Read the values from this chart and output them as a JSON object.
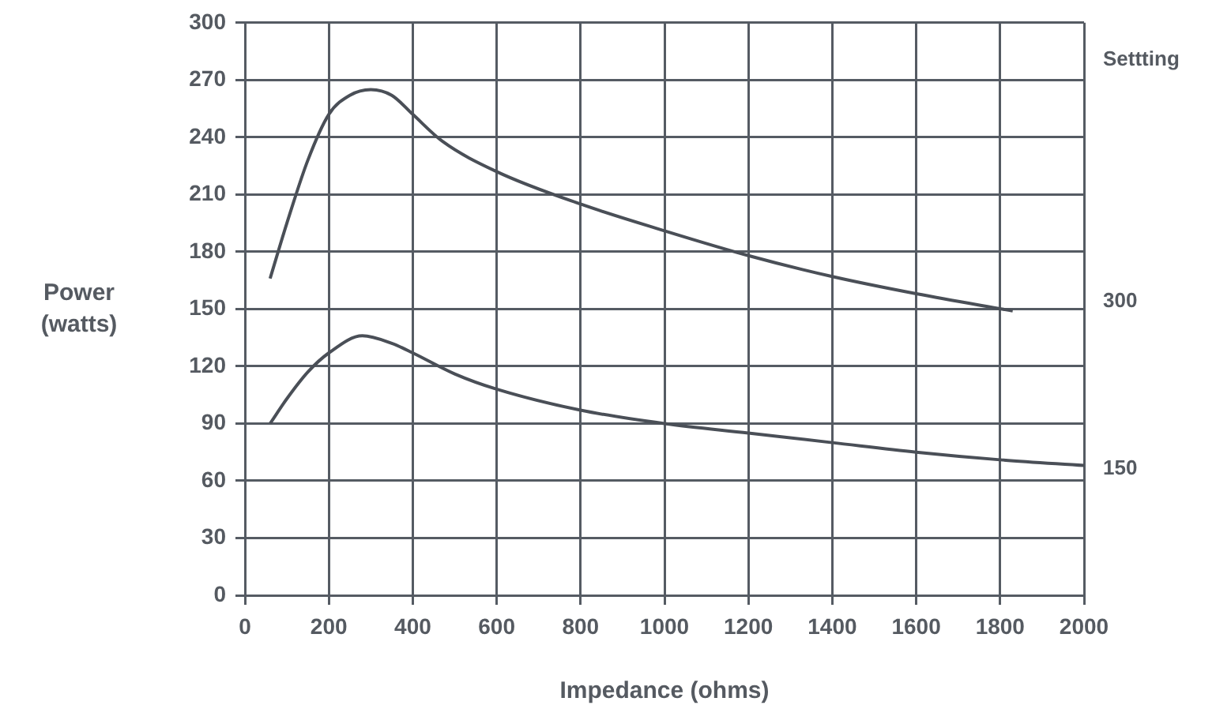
{
  "chart_data": {
    "type": "line",
    "xlabel": "Impedance (ohms)",
    "ylabel": "Power (watts)",
    "legend_title": "Settting",
    "xlim": [
      0,
      2000
    ],
    "xticks": [
      0,
      200,
      400,
      600,
      800,
      1000,
      1200,
      1400,
      1600,
      1800,
      2000
    ],
    "ylim": [
      0,
      300
    ],
    "yticks": [
      0,
      30,
      60,
      90,
      120,
      150,
      180,
      210,
      240,
      270,
      300
    ],
    "grid": true,
    "marker": "none",
    "line_style": "solid",
    "series": [
      {
        "name": "300",
        "color": "#4a4f57",
        "x": [
          60,
          100,
          150,
          200,
          250,
          300,
          350,
          400,
          470,
          600,
          800,
          1000,
          1200,
          1400,
          1600,
          1830
        ],
        "values": [
          166,
          195,
          228,
          252,
          262,
          265,
          262,
          252,
          238,
          222,
          205,
          191,
          178,
          167,
          158,
          149
        ]
      },
      {
        "name": "150",
        "color": "#4a4f57",
        "x": [
          60,
          100,
          150,
          200,
          280,
          350,
          400,
          500,
          600,
          800,
          1000,
          1200,
          1400,
          1600,
          1800,
          2000
        ],
        "values": [
          90,
          103,
          117,
          127,
          136,
          132,
          127,
          116,
          108,
          97,
          90,
          85,
          80,
          75,
          71,
          68
        ]
      }
    ]
  }
}
